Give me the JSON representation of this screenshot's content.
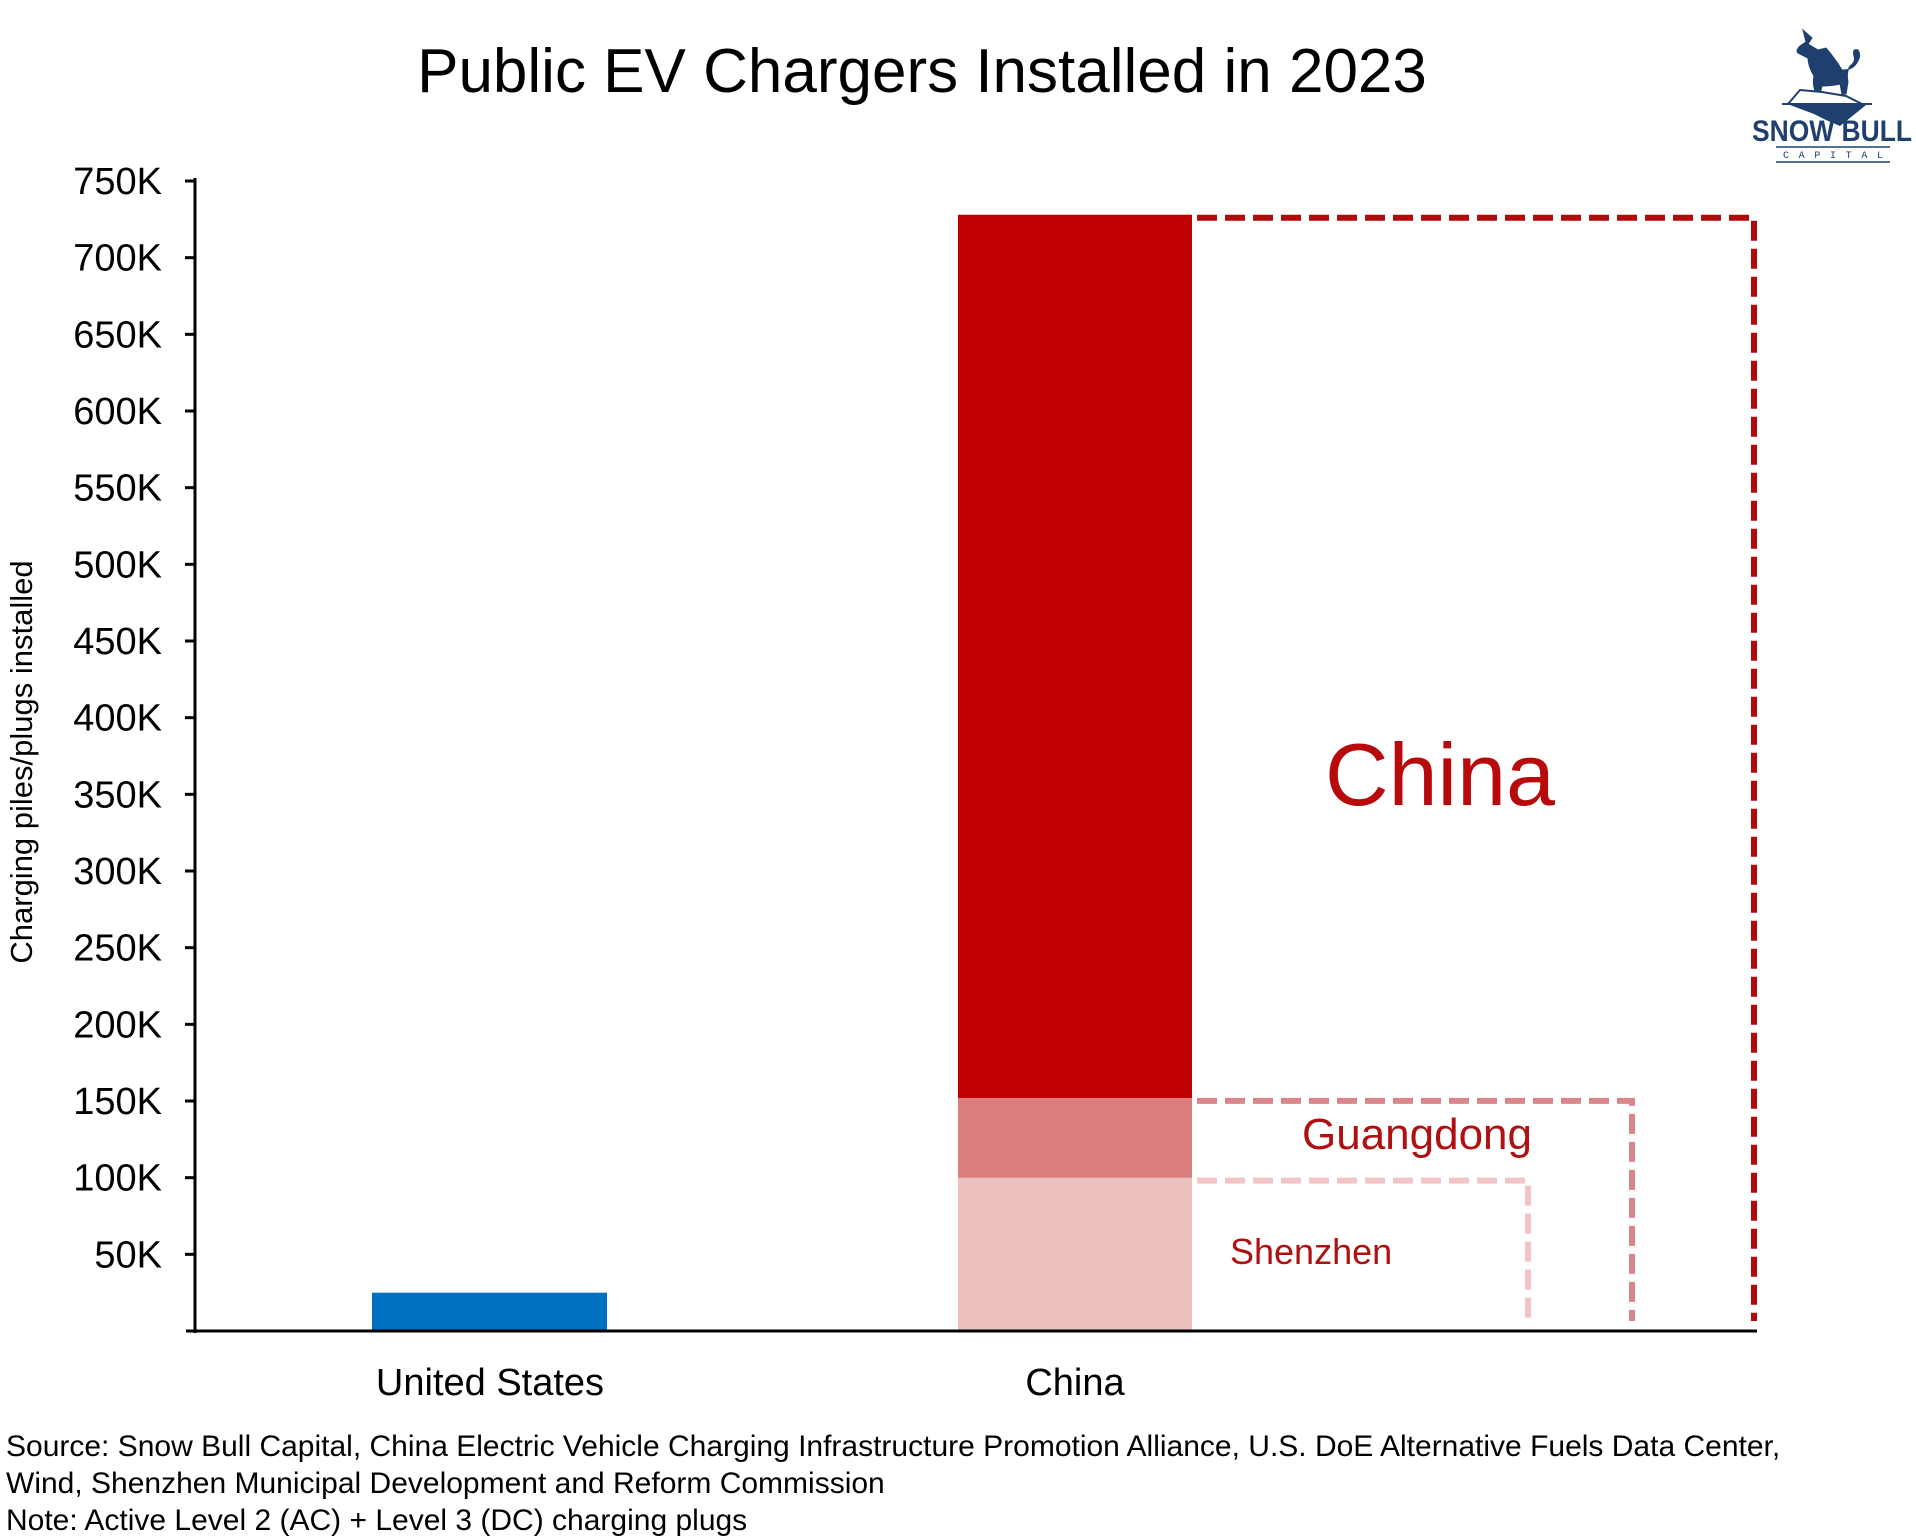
{
  "chart_data": {
    "type": "bar",
    "title": "Public EV Chargers Installed in 2023",
    "xlabel": "",
    "ylabel": "Charging piles/plugs installed",
    "ylim": [
      0,
      750000
    ],
    "yticks": [
      50000,
      100000,
      150000,
      200000,
      250000,
      300000,
      350000,
      400000,
      450000,
      500000,
      550000,
      600000,
      650000,
      700000,
      750000
    ],
    "ytick_labels": [
      "50K",
      "100K",
      "150K",
      "200K",
      "250K",
      "300K",
      "350K",
      "400K",
      "450K",
      "500K",
      "550K",
      "600K",
      "650K",
      "700K",
      "750K"
    ],
    "categories": [
      "United States",
      "China"
    ],
    "grid": false,
    "series": [
      {
        "name": "United States",
        "category": "United States",
        "values": [
          25000
        ],
        "color": "#0070C0"
      },
      {
        "name": "China (rest)",
        "category": "China",
        "values": [
          728000
        ],
        "color": "#C00000"
      },
      {
        "name": "Guangdong",
        "category": "China",
        "values": [
          152000
        ],
        "color": "#DC7E7E"
      },
      {
        "name": "Shenzhen",
        "category": "China",
        "values": [
          100000
        ],
        "color": "#EDC0C0"
      }
    ],
    "annotations": [
      {
        "text": "China",
        "value": 728000,
        "color": "#B80A0A",
        "line_color": "#B00A0A"
      },
      {
        "text": "Guangdong",
        "value": 152000,
        "color": "#B01010",
        "line_color": "#D9868A"
      },
      {
        "text": "Shenzhen",
        "value": 100000,
        "color": "#B01010",
        "line_color": "#F2C4C6"
      }
    ]
  },
  "logo": {
    "name": "SNOW BULL",
    "sub": "C A P I T A L",
    "color": "#1F3F6E",
    "icon": "bull-on-iceberg-icon"
  },
  "footnotes": {
    "source_line1": "Source: Snow Bull Capital, China Electric Vehicle Charging Infrastructure Promotion Alliance, U.S. DoE Alternative Fuels Data Center,",
    "source_line2": "Wind, Shenzhen Municipal Development and Reform Commission",
    "note": "Note: Active Level 2 (AC) + Level 3 (DC) charging plugs"
  }
}
